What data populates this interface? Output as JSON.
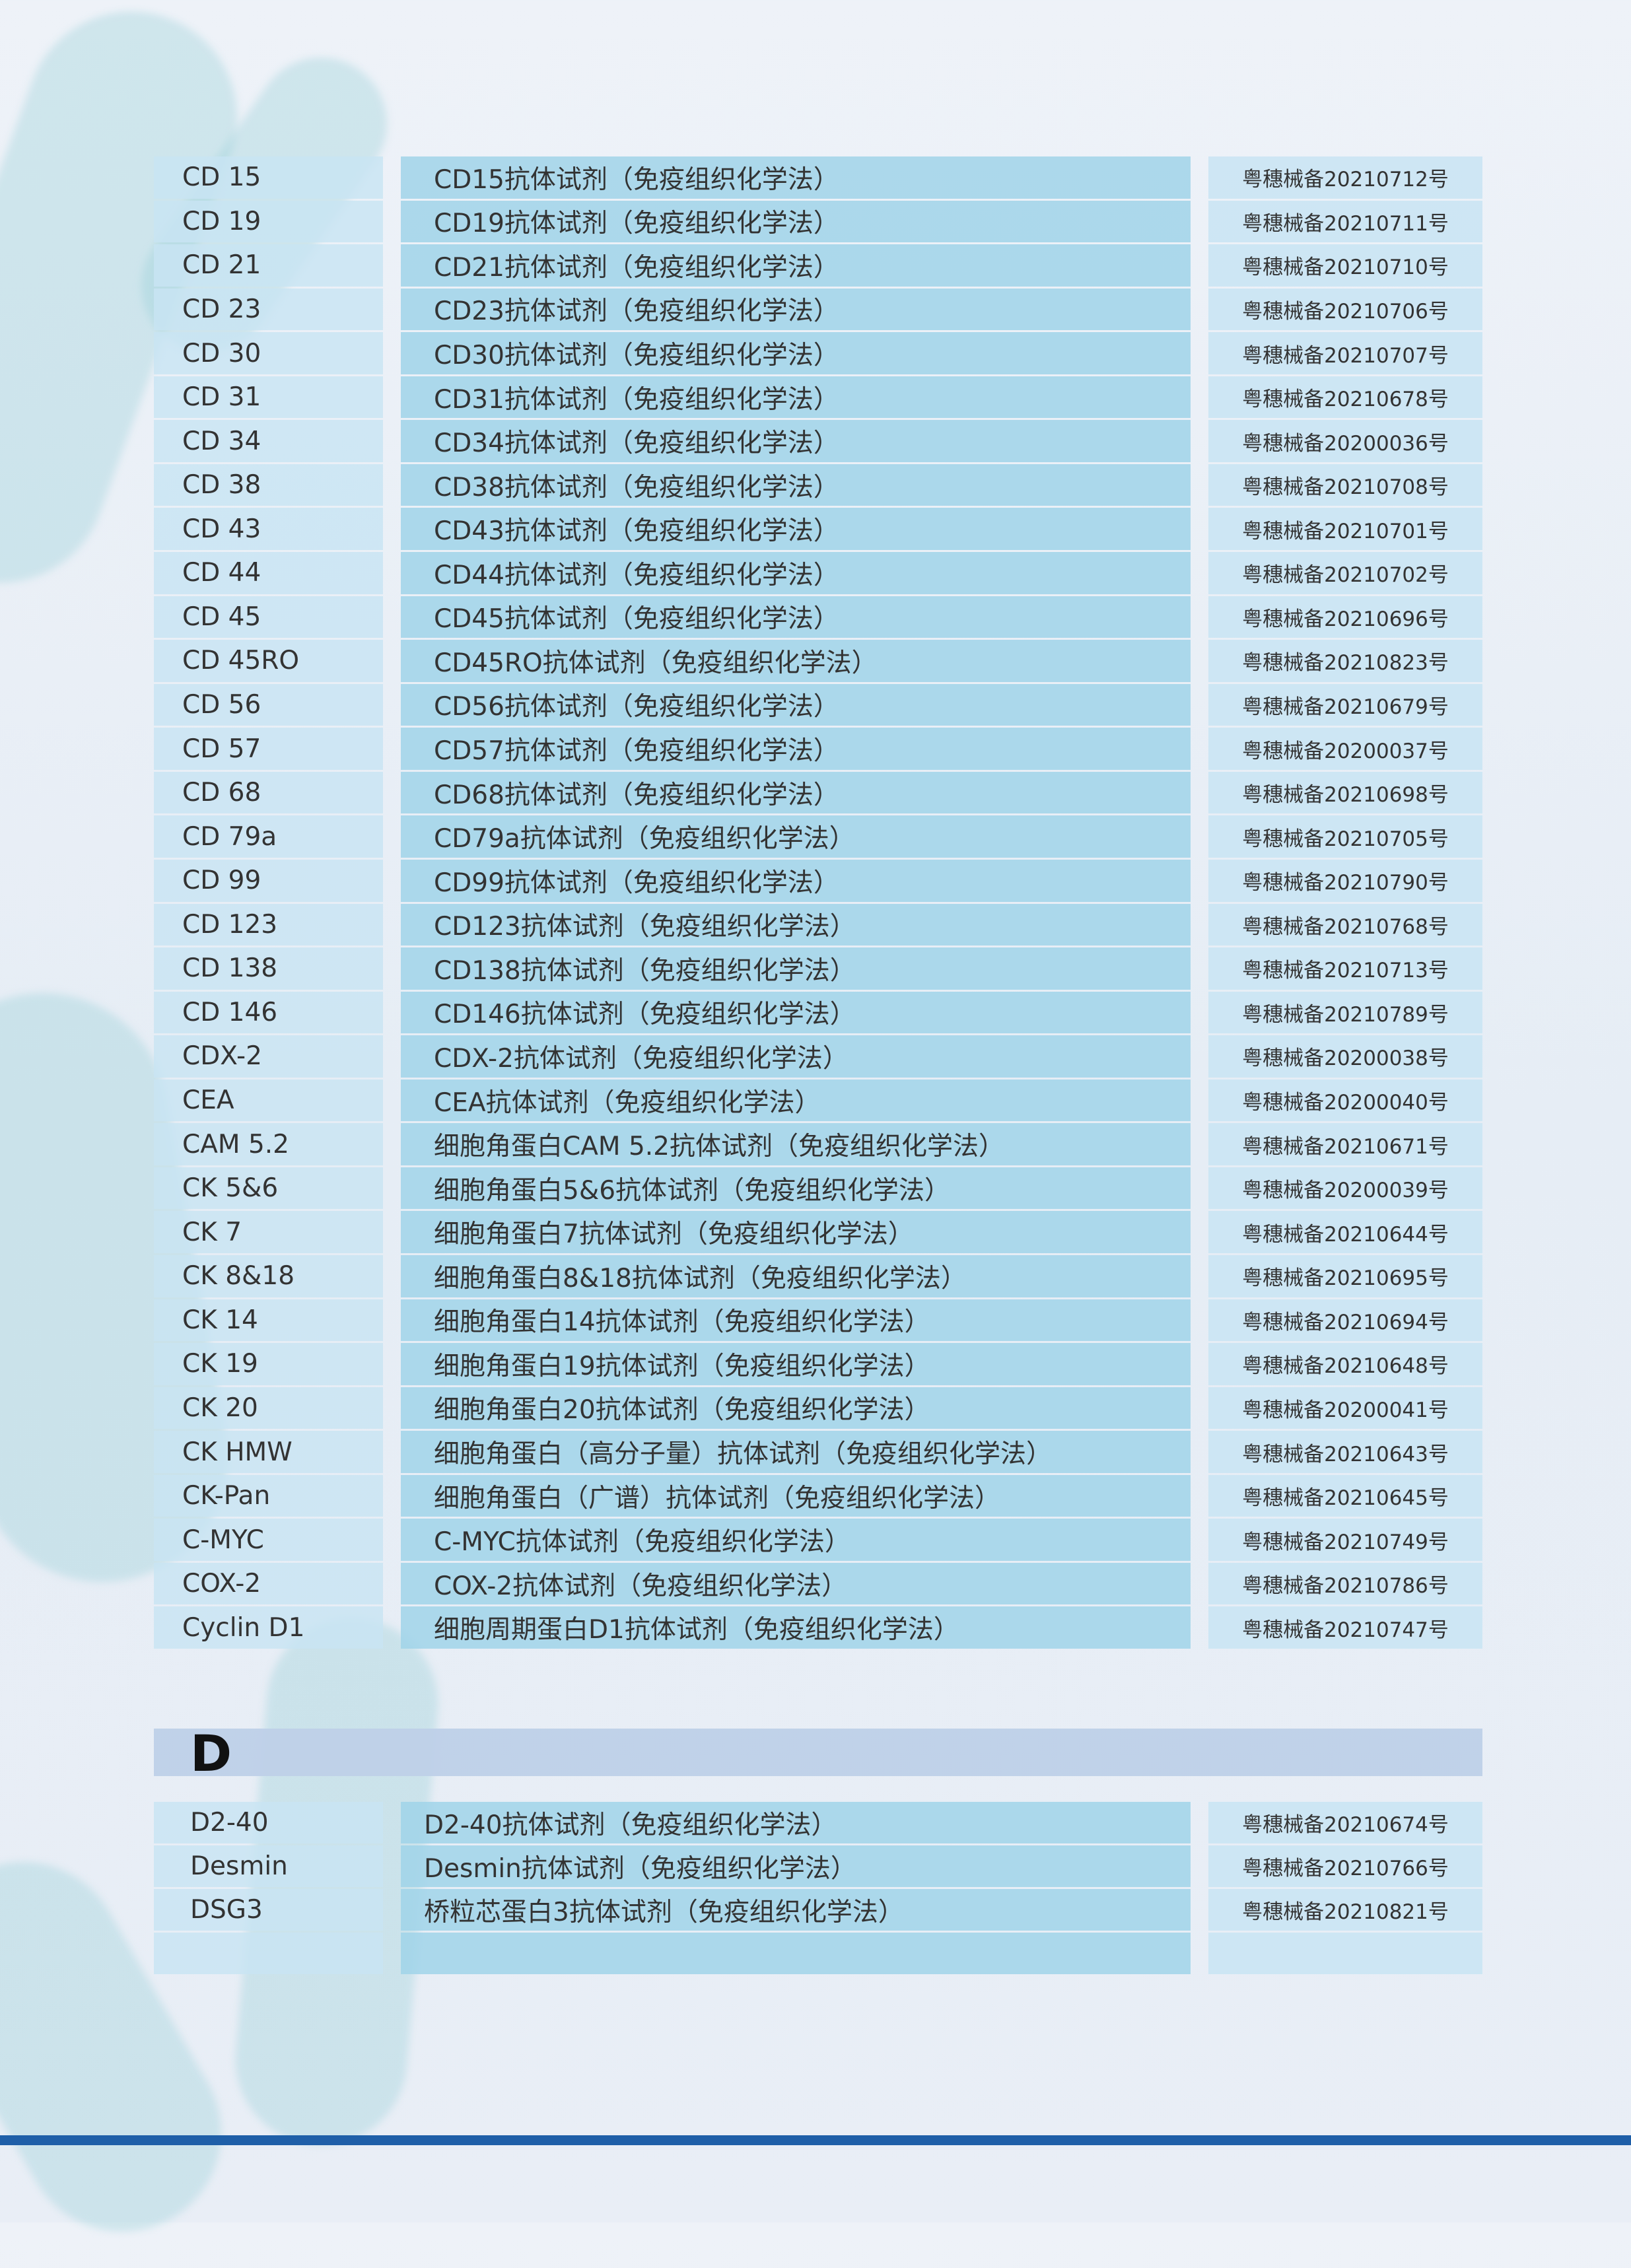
{
  "section_c": {
    "rows": [
      [
        "CD 15",
        "CD15抗体试剂（免疫组织化学法）",
        "粤穗械备20210712号"
      ],
      [
        "CD 19",
        "CD19抗体试剂（免疫组织化学法）",
        "粤穗械备20210711号"
      ],
      [
        "CD 21",
        "CD21抗体试剂（免疫组织化学法）",
        "粤穗械备20210710号"
      ],
      [
        "CD 23",
        "CD23抗体试剂（免疫组织化学法）",
        "粤穗械备20210706号"
      ],
      [
        "CD 30",
        "CD30抗体试剂（免疫组织化学法）",
        "粤穗械备20210707号"
      ],
      [
        "CD 31",
        "CD31抗体试剂（免疫组织化学法）",
        "粤穗械备20210678号"
      ],
      [
        "CD 34",
        "CD34抗体试剂（免疫组织化学法）",
        "粤穗械备20200036号"
      ],
      [
        "CD 38",
        "CD38抗体试剂（免疫组织化学法）",
        "粤穗械备20210708号"
      ],
      [
        "CD 43",
        "CD43抗体试剂（免疫组织化学法）",
        "粤穗械备20210701号"
      ],
      [
        "CD 44",
        "CD44抗体试剂（免疫组织化学法）",
        "粤穗械备20210702号"
      ],
      [
        "CD 45",
        "CD45抗体试剂（免疫组织化学法）",
        "粤穗械备20210696号"
      ],
      [
        "CD 45RO",
        "CD45RO抗体试剂（免疫组织化学法）",
        "粤穗械备20210823号"
      ],
      [
        "CD 56",
        "CD56抗体试剂（免疫组织化学法）",
        "粤穗械备20210679号"
      ],
      [
        "CD 57",
        "CD57抗体试剂（免疫组织化学法）",
        "粤穗械备20200037号"
      ],
      [
        "CD 68",
        "CD68抗体试剂（免疫组织化学法）",
        "粤穗械备20210698号"
      ],
      [
        "CD 79a",
        "CD79a抗体试剂（免疫组织化学法）",
        "粤穗械备20210705号"
      ],
      [
        "CD 99",
        "CD99抗体试剂（免疫组织化学法）",
        "粤穗械备20210790号"
      ],
      [
        "CD 123",
        "CD123抗体试剂（免疫组织化学法）",
        "粤穗械备20210768号"
      ],
      [
        "CD 138",
        "CD138抗体试剂（免疫组织化学法）",
        "粤穗械备20210713号"
      ],
      [
        "CD 146",
        "CD146抗体试剂（免疫组织化学法）",
        "粤穗械备20210789号"
      ],
      [
        "CDX-2",
        "CDX-2抗体试剂（免疫组织化学法）",
        "粤穗械备20200038号"
      ],
      [
        "CEA",
        "CEA抗体试剂（免疫组织化学法）",
        "粤穗械备20200040号"
      ],
      [
        "CAM 5.2",
        "细胞角蛋白CAM 5.2抗体试剂（免疫组织化学法）",
        "粤穗械备20210671号"
      ],
      [
        "CK 5&6",
        "细胞角蛋白5&6抗体试剂（免疫组织化学法）",
        "粤穗械备20200039号"
      ],
      [
        "CK 7",
        "细胞角蛋白7抗体试剂（免疫组织化学法）",
        "粤穗械备20210644号"
      ],
      [
        "CK 8&18",
        "细胞角蛋白8&18抗体试剂（免疫组织化学法）",
        "粤穗械备20210695号"
      ],
      [
        "CK 14",
        "细胞角蛋白14抗体试剂（免疫组织化学法）",
        "粤穗械备20210694号"
      ],
      [
        "CK 19",
        "细胞角蛋白19抗体试剂（免疫组织化学法）",
        "粤穗械备20210648号"
      ],
      [
        "CK 20",
        "细胞角蛋白20抗体试剂（免疫组织化学法）",
        "粤穗械备20200041号"
      ],
      [
        "CK HMW",
        "细胞角蛋白（高分子量）抗体试剂（免疫组织化学法）",
        "粤穗械备20210643号"
      ],
      [
        "CK-Pan",
        "细胞角蛋白（广谱）抗体试剂（免疫组织化学法）",
        "粤穗械备20210645号"
      ],
      [
        "C-MYC",
        "C-MYC抗体试剂（免疫组织化学法）",
        "粤穗械备20210749号"
      ],
      [
        "COX-2",
        "COX-2抗体试剂（免疫组织化学法）",
        "粤穗械备20210786号"
      ],
      [
        "Cyclin D1",
        "细胞周期蛋白D1抗体试剂（免疫组织化学法）",
        "粤穗械备20210747号"
      ]
    ]
  },
  "section_d": {
    "letter": "D",
    "rows": [
      [
        "D2-40",
        "D2-40抗体试剂（免疫组织化学法）",
        "粤穗械备20210674号"
      ],
      [
        "Desmin",
        "Desmin抗体试剂（免疫组织化学法）",
        "粤穗械备20210766号"
      ],
      [
        "DSG3",
        "桥粒芯蛋白3抗体试剂（免疫组织化学法）",
        "粤穗械备20210821号"
      ],
      [
        "",
        "",
        ""
      ]
    ]
  },
  "colors": {
    "accent_bar": "#1f5fa8",
    "header_band": "#bed0e8",
    "name_column": "#a0d4e9"
  }
}
